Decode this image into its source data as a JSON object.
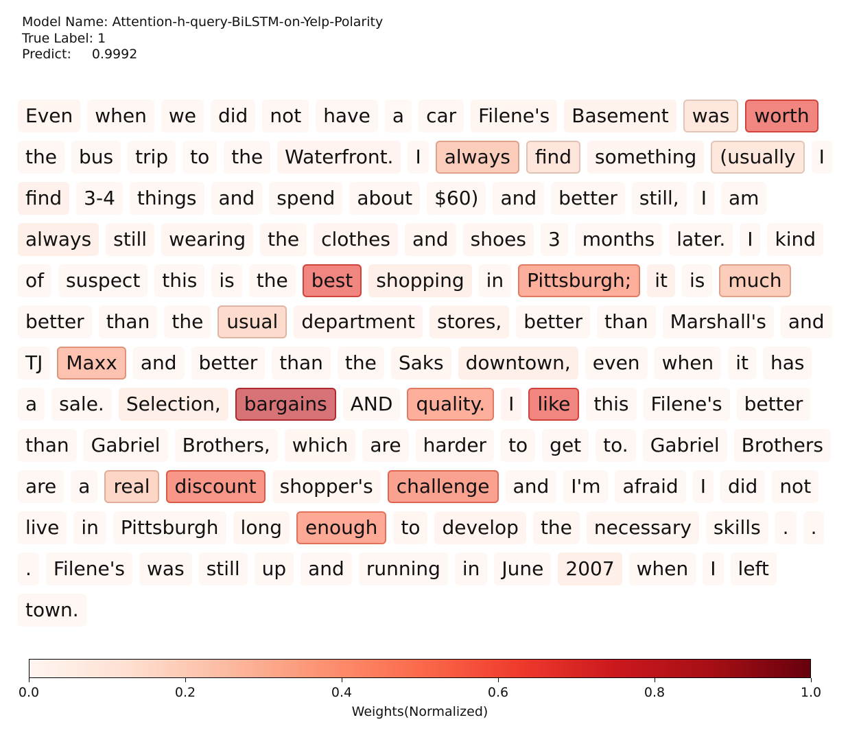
{
  "header": {
    "model_label": "Model Name:",
    "model_value": "Attention-h-query-BiLSTM-on-Yelp-Polarity",
    "true_label_label": "True Label:",
    "true_label_value": "1",
    "predict_label": "Predict:",
    "predict_value": "0.9992"
  },
  "chart_data": {
    "type": "heatmap",
    "tokens": [
      {
        "text": "Even",
        "weight": 0.03
      },
      {
        "text": "when",
        "weight": 0.02
      },
      {
        "text": "we",
        "weight": 0.02
      },
      {
        "text": "did",
        "weight": 0.02
      },
      {
        "text": "not",
        "weight": 0.02
      },
      {
        "text": "have",
        "weight": 0.02
      },
      {
        "text": "a",
        "weight": 0.01
      },
      {
        "text": "car",
        "weight": 0.02
      },
      {
        "text": "Filene's",
        "weight": 0.03
      },
      {
        "text": "Basement",
        "weight": 0.06
      },
      {
        "text": "was",
        "weight": 0.15
      },
      {
        "text": "worth",
        "weight": 0.65
      },
      {
        "text": "the",
        "weight": 0.02
      },
      {
        "text": "bus",
        "weight": 0.02
      },
      {
        "text": "trip",
        "weight": 0.02
      },
      {
        "text": "to",
        "weight": 0.01
      },
      {
        "text": "the",
        "weight": 0.02
      },
      {
        "text": "Waterfront.",
        "weight": 0.05
      },
      {
        "text": "I",
        "weight": 0.02
      },
      {
        "text": "always",
        "weight": 0.3
      },
      {
        "text": "find",
        "weight": 0.16
      },
      {
        "text": "something",
        "weight": 0.04
      },
      {
        "text": "(usually",
        "weight": 0.15
      },
      {
        "text": "I",
        "weight": 0.02
      },
      {
        "text": "find",
        "weight": 0.08
      },
      {
        "text": "3-4",
        "weight": 0.02
      },
      {
        "text": "things",
        "weight": 0.02
      },
      {
        "text": "and",
        "weight": 0.02
      },
      {
        "text": "spend",
        "weight": 0.02
      },
      {
        "text": "about",
        "weight": 0.02
      },
      {
        "text": "$60)",
        "weight": 0.02
      },
      {
        "text": "and",
        "weight": 0.02
      },
      {
        "text": "better",
        "weight": 0.02
      },
      {
        "text": "still,",
        "weight": 0.02
      },
      {
        "text": "I",
        "weight": 0.02
      },
      {
        "text": "am",
        "weight": 0.02
      },
      {
        "text": "always",
        "weight": 0.09
      },
      {
        "text": "still",
        "weight": 0.03
      },
      {
        "text": "wearing",
        "weight": 0.03
      },
      {
        "text": "the",
        "weight": 0.03
      },
      {
        "text": "clothes",
        "weight": 0.05
      },
      {
        "text": "and",
        "weight": 0.03
      },
      {
        "text": "shoes",
        "weight": 0.03
      },
      {
        "text": "3",
        "weight": 0.02
      },
      {
        "text": "months",
        "weight": 0.02
      },
      {
        "text": "later.",
        "weight": 0.02
      },
      {
        "text": "I",
        "weight": 0.02
      },
      {
        "text": "kind",
        "weight": 0.02
      },
      {
        "text": "of",
        "weight": 0.02
      },
      {
        "text": "suspect",
        "weight": 0.02
      },
      {
        "text": "this",
        "weight": 0.02
      },
      {
        "text": "is",
        "weight": 0.02
      },
      {
        "text": "the",
        "weight": 0.02
      },
      {
        "text": "best",
        "weight": 0.65
      },
      {
        "text": "shopping",
        "weight": 0.1
      },
      {
        "text": "in",
        "weight": 0.02
      },
      {
        "text": "Pittsburgh;",
        "weight": 0.45
      },
      {
        "text": "it",
        "weight": 0.08
      },
      {
        "text": "is",
        "weight": 0.02
      },
      {
        "text": "much",
        "weight": 0.3
      },
      {
        "text": "better",
        "weight": 0.02
      },
      {
        "text": "than",
        "weight": 0.02
      },
      {
        "text": "the",
        "weight": 0.02
      },
      {
        "text": "usual",
        "weight": 0.22
      },
      {
        "text": "department",
        "weight": 0.05
      },
      {
        "text": "stores,",
        "weight": 0.06
      },
      {
        "text": "better",
        "weight": 0.02
      },
      {
        "text": "than",
        "weight": 0.02
      },
      {
        "text": "Marshall's",
        "weight": 0.02
      },
      {
        "text": "and",
        "weight": 0.02
      },
      {
        "text": "TJ",
        "weight": 0.02
      },
      {
        "text": "Maxx",
        "weight": 0.35
      },
      {
        "text": "and",
        "weight": 0.02
      },
      {
        "text": "better",
        "weight": 0.02
      },
      {
        "text": "than",
        "weight": 0.02
      },
      {
        "text": "the",
        "weight": 0.02
      },
      {
        "text": "Saks",
        "weight": 0.03
      },
      {
        "text": "downtown,",
        "weight": 0.1
      },
      {
        "text": "even",
        "weight": 0.02
      },
      {
        "text": "when",
        "weight": 0.02
      },
      {
        "text": "it",
        "weight": 0.02
      },
      {
        "text": "has",
        "weight": 0.02
      },
      {
        "text": "a",
        "weight": 0.02
      },
      {
        "text": "sale.",
        "weight": 0.02
      },
      {
        "text": "Selection,",
        "weight": 0.1
      },
      {
        "text": "bargains",
        "weight": 0.8
      },
      {
        "text": "AND",
        "weight": 0.02
      },
      {
        "text": "quality.",
        "weight": 0.45
      },
      {
        "text": "I",
        "weight": 0.05
      },
      {
        "text": "like",
        "weight": 0.65
      },
      {
        "text": "this",
        "weight": 0.02
      },
      {
        "text": "Filene's",
        "weight": 0.02
      },
      {
        "text": "better",
        "weight": 0.02
      },
      {
        "text": "than",
        "weight": 0.02
      },
      {
        "text": "Gabriel",
        "weight": 0.02
      },
      {
        "text": "Brothers,",
        "weight": 0.02
      },
      {
        "text": "which",
        "weight": 0.03
      },
      {
        "text": "are",
        "weight": 0.02
      },
      {
        "text": "harder",
        "weight": 0.02
      },
      {
        "text": "to",
        "weight": 0.02
      },
      {
        "text": "get",
        "weight": 0.02
      },
      {
        "text": "to.",
        "weight": 0.02
      },
      {
        "text": "Gabriel",
        "weight": 0.02
      },
      {
        "text": "Brothers",
        "weight": 0.02
      },
      {
        "text": "are",
        "weight": 0.02
      },
      {
        "text": "a",
        "weight": 0.02
      },
      {
        "text": "real",
        "weight": 0.25
      },
      {
        "text": "discount",
        "weight": 0.57
      },
      {
        "text": "shopper's",
        "weight": 0.03
      },
      {
        "text": "challenge",
        "weight": 0.52
      },
      {
        "text": "and",
        "weight": 0.02
      },
      {
        "text": "I'm",
        "weight": 0.02
      },
      {
        "text": "afraid",
        "weight": 0.02
      },
      {
        "text": "I",
        "weight": 0.02
      },
      {
        "text": "did",
        "weight": 0.02
      },
      {
        "text": "not",
        "weight": 0.02
      },
      {
        "text": "live",
        "weight": 0.02
      },
      {
        "text": "in",
        "weight": 0.02
      },
      {
        "text": "Pittsburgh",
        "weight": 0.02
      },
      {
        "text": "long",
        "weight": 0.03
      },
      {
        "text": "enough",
        "weight": 0.48
      },
      {
        "text": "to",
        "weight": 0.03
      },
      {
        "text": "develop",
        "weight": 0.05
      },
      {
        "text": "the",
        "weight": 0.03
      },
      {
        "text": "necessary",
        "weight": 0.04
      },
      {
        "text": "skills",
        "weight": 0.02
      },
      {
        "text": ".",
        "weight": 0.02
      },
      {
        "text": ".",
        "weight": 0.02
      },
      {
        "text": ".",
        "weight": 0.02
      },
      {
        "text": "Filene's",
        "weight": 0.02
      },
      {
        "text": "was",
        "weight": 0.02
      },
      {
        "text": "still",
        "weight": 0.02
      },
      {
        "text": "up",
        "weight": 0.02
      },
      {
        "text": "and",
        "weight": 0.02
      },
      {
        "text": "running",
        "weight": 0.02
      },
      {
        "text": "in",
        "weight": 0.02
      },
      {
        "text": "June",
        "weight": 0.02
      },
      {
        "text": "2007",
        "weight": 0.1
      },
      {
        "text": "when",
        "weight": 0.02
      },
      {
        "text": "I",
        "weight": 0.02
      },
      {
        "text": "left",
        "weight": 0.02
      },
      {
        "text": "town.",
        "weight": 0.02
      }
    ],
    "colorbar": {
      "colormap": "Reds",
      "range": [
        0.0,
        1.0
      ],
      "ticks": [
        0.0,
        0.2,
        0.4,
        0.6,
        0.8,
        1.0
      ],
      "tick_labels": [
        "0.0",
        "0.2",
        "0.4",
        "0.6",
        "0.8",
        "1.0"
      ],
      "label": "Weights(Normalized)"
    }
  }
}
